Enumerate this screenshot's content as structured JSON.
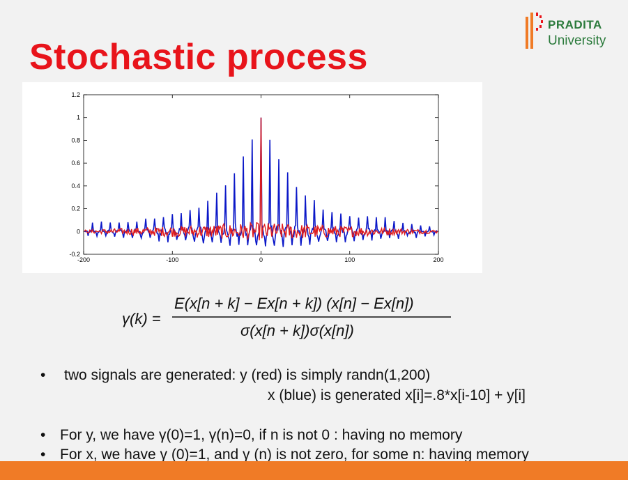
{
  "slide": {
    "title": "Stochastic process",
    "logo": {
      "name": "PRADITA",
      "sub": "University"
    },
    "formula": {
      "lhs": "γ(k) =",
      "numerator": "E(x[n + k] − Ex[n + k]) (x[n] − Ex[n])",
      "denominator": "σ(x[n + k])σ(x[n])"
    },
    "bullets": [
      {
        "marker": "•",
        "lines": [
          "two signals are generated: y (red) is  simply randn(1,200)",
          "x (blue) is generated x[i]=.8*x[i-10] + y[i]"
        ]
      },
      {
        "marker": "•",
        "lines": [
          "For y, we have γ(0)=1, γ(n)=0, if n is not 0 :  having no memory"
        ]
      },
      {
        "marker": "•",
        "lines": [
          "For x, we have γ (0)=1, and γ (n) is not zero, for some n: having memory"
        ]
      }
    ],
    "colors": {
      "title": "#e8141b",
      "footer": "#f07b26",
      "blue": "#0b18c8",
      "red": "#e01b1b",
      "logo": "#2a7a3b"
    }
  },
  "chart_data": {
    "type": "line",
    "xlim": [
      -200,
      200
    ],
    "ylim": [
      -0.2,
      1.2
    ],
    "xticks": [
      "-200",
      "-100",
      "0",
      "100",
      "200"
    ],
    "yticks": [
      "-0.2",
      "0",
      "0.2",
      "0.4",
      "0.6",
      "0.8",
      "1",
      "1.2"
    ],
    "series": [
      {
        "color": "#0b18c8",
        "description_peaks": [
          {
            "x": 0,
            "y": 1.0
          },
          {
            "x": -10,
            "y": 0.8
          },
          {
            "x": 10,
            "y": 0.8
          },
          {
            "x": -20,
            "y": 0.64
          },
          {
            "x": 20,
            "y": 0.64
          },
          {
            "x": -30,
            "y": 0.5
          },
          {
            "x": 30,
            "y": 0.5
          },
          {
            "x": -40,
            "y": 0.35
          },
          {
            "x": 40,
            "y": 0.35
          },
          {
            "x": -50,
            "y": 0.2
          },
          {
            "x": 50,
            "y": 0.2
          },
          {
            "x": -100,
            "y": 0.2
          },
          {
            "x": 100,
            "y": 0.2
          },
          {
            "x": -200,
            "y": 0.0
          },
          {
            "x": 200,
            "y": 0.0
          }
        ]
      },
      {
        "color": "#e01b1b",
        "description_peaks": [
          {
            "x": 0,
            "y": 1.0
          },
          {
            "x": -100,
            "y": 0.05
          },
          {
            "x": 100,
            "y": 0.05
          },
          {
            "x": -200,
            "y": 0.0
          },
          {
            "x": 200,
            "y": 0.0
          }
        ]
      }
    ],
    "grid": false
  }
}
